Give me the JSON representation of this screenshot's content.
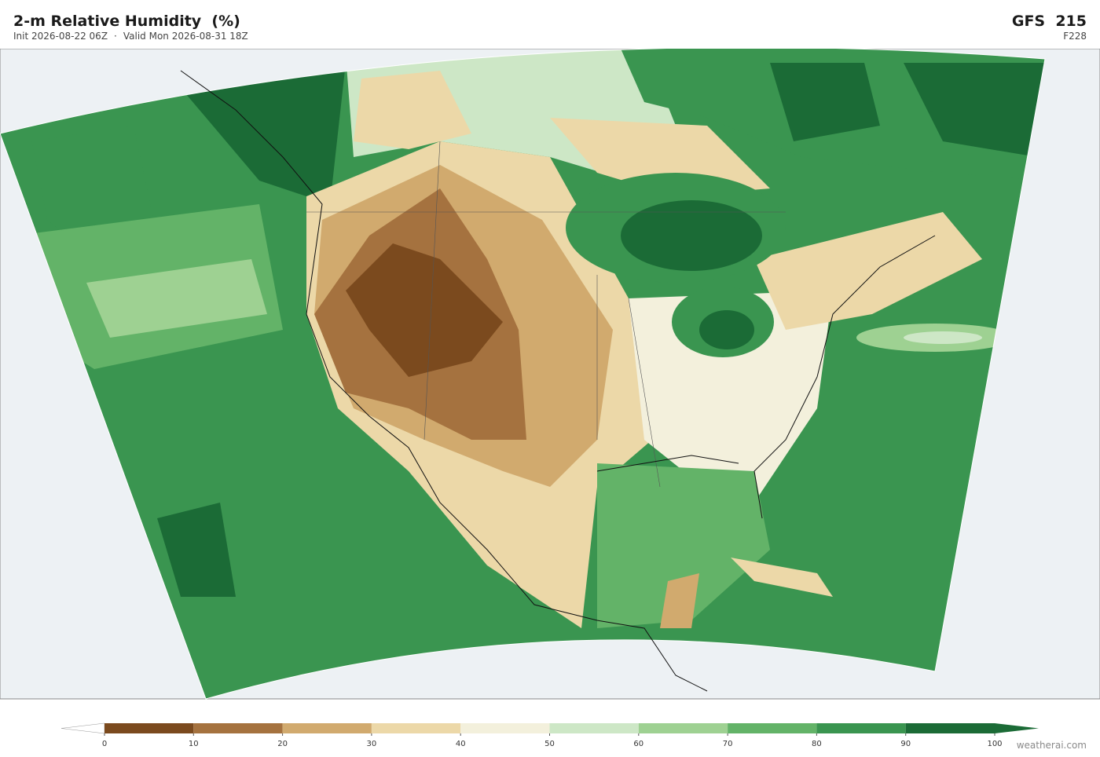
{
  "header": {
    "title": "2-m Relative Humidity  (%)",
    "init": "Init 2026-08-22 06Z",
    "separator": "·",
    "valid": "Valid Mon 2026-08-31 18Z",
    "model": "GFS  215",
    "forecast_hour": "F228"
  },
  "colorbar": {
    "ticks": [
      0,
      10,
      20,
      30,
      40,
      50,
      60,
      70,
      80,
      90,
      100
    ],
    "colors": [
      "#7b4a1e",
      "#a5723f",
      "#d1aa6e",
      "#ecd8a8",
      "#f3f0dc",
      "#cde7c6",
      "#9ed192",
      "#63b368",
      "#3a9550",
      "#1b6b36"
    ],
    "over_color": "#1b6b36",
    "under_color": "#ffffff"
  },
  "footer": {
    "credit": "weatherai.com"
  }
}
